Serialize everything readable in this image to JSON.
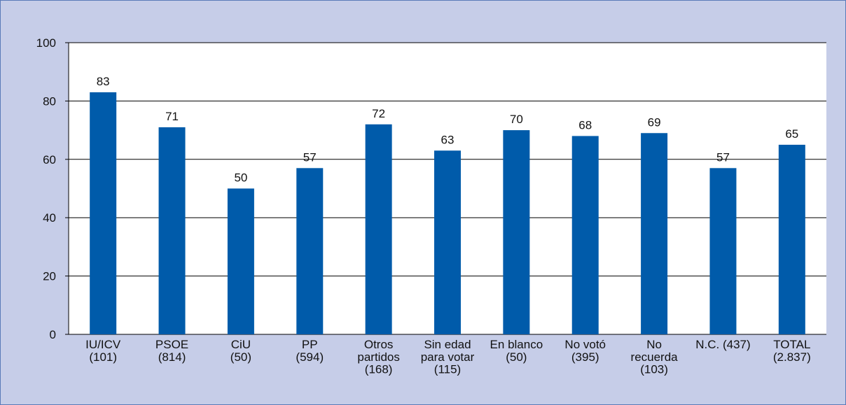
{
  "chart_data": {
    "type": "bar",
    "categories": [
      "IU/ICV\n(101)",
      "PSOE\n(814)",
      "CiU\n(50)",
      "PP\n(594)",
      "Otros\npartidos\n(168)",
      "Sin edad\npara votar\n(115)",
      "En blanco\n(50)",
      "No votó\n(395)",
      "No\nrecuerda\n(103)",
      "N.C. (437)",
      "TOTAL\n(2.837)"
    ],
    "values": [
      83,
      71,
      50,
      57,
      72,
      63,
      70,
      68,
      69,
      57,
      65
    ],
    "color": "#005baa",
    "ylim": [
      0,
      100
    ],
    "yticks": [
      0,
      20,
      40,
      60,
      80,
      100
    ],
    "grid": true
  }
}
